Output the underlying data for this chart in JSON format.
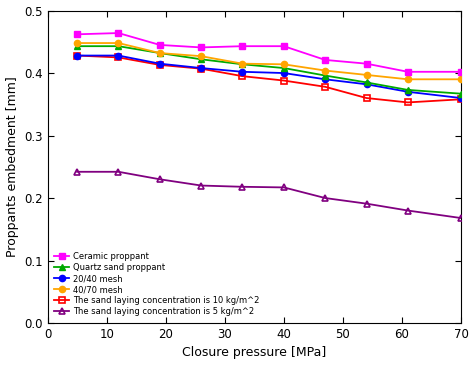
{
  "x": [
    5,
    12,
    19,
    26,
    33,
    40,
    47,
    54,
    61,
    70
  ],
  "ceramic_proppant": [
    0.462,
    0.464,
    0.445,
    0.441,
    0.443,
    0.443,
    0.421,
    0.415,
    0.402,
    0.402
  ],
  "quartz_sand": [
    0.443,
    0.443,
    0.432,
    0.422,
    0.414,
    0.408,
    0.396,
    0.385,
    0.373,
    0.367
  ],
  "mesh_2040": [
    0.428,
    0.428,
    0.415,
    0.408,
    0.402,
    0.4,
    0.39,
    0.382,
    0.37,
    0.36
  ],
  "mesh_4070": [
    0.448,
    0.448,
    0.432,
    0.427,
    0.415,
    0.414,
    0.404,
    0.397,
    0.39,
    0.39
  ],
  "conc_10": [
    0.428,
    0.425,
    0.413,
    0.407,
    0.395,
    0.388,
    0.378,
    0.36,
    0.353,
    0.358
  ],
  "conc_5": [
    0.242,
    0.242,
    0.23,
    0.22,
    0.218,
    0.217,
    0.2,
    0.191,
    0.18,
    0.168
  ],
  "colors": {
    "ceramic": "#FF00FF",
    "quartz": "#00AA00",
    "mesh2040": "#0000FF",
    "mesh4070": "#FFA500",
    "conc10": "#FF0000",
    "conc5": "#800080"
  },
  "xlabel": "Closure pressure [MPa]",
  "ylabel": "Proppants embedment [mm]",
  "xlim": [
    0,
    70
  ],
  "ylim": [
    0,
    0.5
  ],
  "xticks": [
    0,
    10,
    20,
    30,
    40,
    50,
    60,
    70
  ],
  "yticks": [
    0,
    0.1,
    0.2,
    0.3,
    0.4,
    0.5
  ],
  "legend_labels": [
    "Ceramic proppant",
    "Quartz sand proppant",
    "20/40 mesh",
    "40/70 mesh",
    "The sand laying concentration is 10 kg/m^2",
    "The sand laying concentration is 5 kg/m^2"
  ],
  "figsize": [
    4.74,
    3.65
  ],
  "dpi": 100
}
